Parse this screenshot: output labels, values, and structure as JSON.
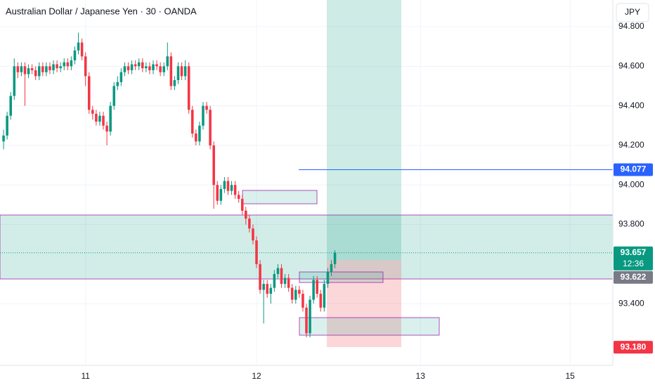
{
  "chart_data": {
    "type": "candlestick",
    "title": "Australian Dollar / Japanese Yen · 30 · OANDA",
    "currency_button": "JPY",
    "up_color": "#089981",
    "down_color": "#f23645",
    "ylim": [
      93.088,
      94.935
    ],
    "yticks": [
      {
        "value": 94.8,
        "label": "94.800"
      },
      {
        "value": 94.6,
        "label": "94.600"
      },
      {
        "value": 94.4,
        "label": "94.400"
      },
      {
        "value": 94.2,
        "label": "94.200"
      },
      {
        "value": 94.0,
        "label": "94.000"
      },
      {
        "value": 93.8,
        "label": "93.800"
      },
      {
        "value": 93.4,
        "label": "93.400"
      }
    ],
    "xlim": [
      -1,
      171
    ],
    "xticks": [
      {
        "value": 23,
        "label": "11"
      },
      {
        "value": 71,
        "label": "12"
      },
      {
        "value": 117,
        "label": "13"
      },
      {
        "value": 159,
        "label": "15"
      }
    ],
    "grid": true,
    "open": [
      94.22,
      94.25,
      94.35,
      94.45,
      94.6,
      94.57,
      94.6,
      94.56,
      94.59,
      94.58,
      94.55,
      94.6,
      94.57,
      94.6,
      94.58,
      94.61,
      94.59,
      94.6,
      94.62,
      94.6,
      94.63,
      94.68,
      94.72,
      94.65,
      94.55,
      94.38,
      94.36,
      94.32,
      94.35,
      94.3,
      94.27,
      94.4,
      94.5,
      94.52,
      94.57,
      94.6,
      94.58,
      94.61,
      94.6,
      94.62,
      94.59,
      94.6,
      94.58,
      94.61,
      94.6,
      94.57,
      94.6,
      94.65,
      94.5,
      94.53,
      94.6,
      94.55,
      94.6,
      94.38,
      94.26,
      94.22,
      94.3,
      94.4,
      94.38,
      94.2,
      94.0,
      93.92,
      93.98,
      94.02,
      93.97,
      94.0,
      93.95,
      93.93,
      93.87,
      93.83,
      93.78,
      93.72,
      93.6,
      93.47,
      93.5,
      93.45,
      93.48,
      93.55,
      93.58,
      93.5,
      93.53,
      93.48,
      93.42,
      93.47,
      93.45,
      93.38,
      93.25,
      93.42,
      93.52,
      93.45,
      93.38,
      93.5,
      93.56,
      93.6
    ],
    "high": [
      94.28,
      94.37,
      94.47,
      94.64,
      94.62,
      94.62,
      94.62,
      94.61,
      94.61,
      94.6,
      94.62,
      94.62,
      94.62,
      94.62,
      94.63,
      94.63,
      94.62,
      94.64,
      94.64,
      94.65,
      94.7,
      94.77,
      94.74,
      94.67,
      94.57,
      94.4,
      94.38,
      94.37,
      94.37,
      94.32,
      94.42,
      94.52,
      94.55,
      94.59,
      94.62,
      94.62,
      94.63,
      94.63,
      94.64,
      94.64,
      94.62,
      94.62,
      94.63,
      94.63,
      94.62,
      94.62,
      94.72,
      94.67,
      94.55,
      94.62,
      94.62,
      94.63,
      94.62,
      94.4,
      94.28,
      94.32,
      94.42,
      94.42,
      94.4,
      94.22,
      94.02,
      94.0,
      94.04,
      94.04,
      94.02,
      94.02,
      93.97,
      93.95,
      93.89,
      93.85,
      93.8,
      93.74,
      93.62,
      93.52,
      93.52,
      93.5,
      93.57,
      93.6,
      93.6,
      93.55,
      93.55,
      93.5,
      93.49,
      93.49,
      93.47,
      93.4,
      93.44,
      93.54,
      93.54,
      93.47,
      93.52,
      93.58,
      93.62,
      93.67
    ],
    "low": [
      94.18,
      94.23,
      94.33,
      94.43,
      94.54,
      94.55,
      94.4,
      94.54,
      94.56,
      94.53,
      94.53,
      94.55,
      94.55,
      94.56,
      94.56,
      94.57,
      94.57,
      94.58,
      94.58,
      94.58,
      94.61,
      94.66,
      94.63,
      94.5,
      94.36,
      94.33,
      94.3,
      94.3,
      94.28,
      94.2,
      94.25,
      94.38,
      94.48,
      94.5,
      94.55,
      94.56,
      94.56,
      94.58,
      94.58,
      94.57,
      94.57,
      94.56,
      94.56,
      94.58,
      94.55,
      94.55,
      94.58,
      94.48,
      94.48,
      94.51,
      94.53,
      94.53,
      94.36,
      94.24,
      94.2,
      94.2,
      94.28,
      94.36,
      94.18,
      93.88,
      93.9,
      93.9,
      93.96,
      93.95,
      93.95,
      93.93,
      93.91,
      93.85,
      93.8,
      93.76,
      93.7,
      93.58,
      93.45,
      93.3,
      93.43,
      93.4,
      93.46,
      93.53,
      93.48,
      93.48,
      93.46,
      93.4,
      93.4,
      93.43,
      93.36,
      93.23,
      93.23,
      93.4,
      93.43,
      93.36,
      93.36,
      93.48,
      93.54,
      93.58
    ],
    "close": [
      94.25,
      94.35,
      94.45,
      94.6,
      94.57,
      94.6,
      94.56,
      94.59,
      94.58,
      94.55,
      94.6,
      94.57,
      94.6,
      94.58,
      94.61,
      94.59,
      94.6,
      94.62,
      94.6,
      94.63,
      94.68,
      94.72,
      94.65,
      94.55,
      94.38,
      94.36,
      94.32,
      94.35,
      94.3,
      94.27,
      94.4,
      94.5,
      94.52,
      94.57,
      94.6,
      94.58,
      94.61,
      94.6,
      94.62,
      94.59,
      94.6,
      94.58,
      94.61,
      94.6,
      94.57,
      94.6,
      94.65,
      94.5,
      94.53,
      94.6,
      94.55,
      94.6,
      94.38,
      94.26,
      94.22,
      94.3,
      94.4,
      94.38,
      94.2,
      94.0,
      93.92,
      93.98,
      94.02,
      93.97,
      94.0,
      93.95,
      93.93,
      93.87,
      93.83,
      93.78,
      93.72,
      93.6,
      93.47,
      93.5,
      93.45,
      93.48,
      93.55,
      93.58,
      93.5,
      93.53,
      93.48,
      93.42,
      93.47,
      93.45,
      93.38,
      93.25,
      93.42,
      93.52,
      93.45,
      93.38,
      93.5,
      93.56,
      93.6,
      93.657
    ],
    "price_labels": [
      {
        "value": 94.077,
        "label": "94.077",
        "color": "#2962ff"
      },
      {
        "value": 93.657,
        "label": "93.657",
        "sublabel": "12:36",
        "color": "#089981"
      },
      {
        "value": 93.622,
        "label": "93.622",
        "color": "#787b86"
      },
      {
        "value": 93.18,
        "label": "93.180",
        "color": "#f23645"
      }
    ]
  }
}
